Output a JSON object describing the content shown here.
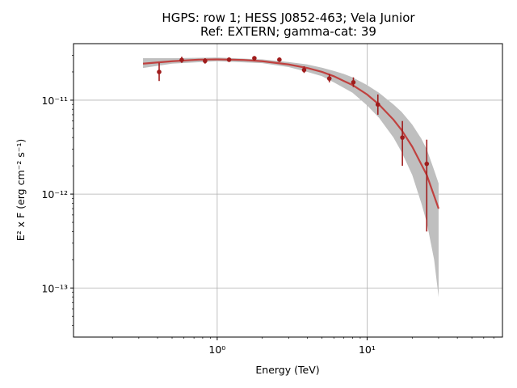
{
  "chart_data": {
    "type": "scatter",
    "title": "HGPS: row 1; HESS J0852-463; Vela Junior",
    "subtitle": "Ref: EXTERN; gamma-cat: 39",
    "xlabel": "Energy (TeV)",
    "ylabel": "E² x F (erg cm⁻² s⁻¹)",
    "x_scale": "log",
    "y_scale": "log",
    "xlim": [
      0.11,
      80
    ],
    "ylim": [
      3e-14,
      4e-11
    ],
    "grid": true,
    "x_ticks": [
      {
        "value": 1,
        "label": "10⁰"
      },
      {
        "value": 10,
        "label": "10¹"
      }
    ],
    "y_ticks": [
      {
        "value": 1e-13,
        "label": "10⁻¹³"
      },
      {
        "value": 1e-12,
        "label": "10⁻¹²"
      },
      {
        "value": 1e-11,
        "label": "10⁻¹¹"
      }
    ],
    "colors": {
      "points": "#a01c1c",
      "model": "#c0413f",
      "band": "#bfbfbf"
    },
    "points": [
      {
        "x": 0.41,
        "y": 2e-11,
        "ylo": 1.6e-11,
        "yhi": 2.5e-11
      },
      {
        "x": 0.58,
        "y": 2.68e-11,
        "ylo": 2.5e-11,
        "yhi": 2.9e-11
      },
      {
        "x": 0.83,
        "y": 2.62e-11,
        "ylo": 2.45e-11,
        "yhi": 2.8e-11
      },
      {
        "x": 1.2,
        "y": 2.7e-11,
        "ylo": 2.55e-11,
        "yhi": 2.85e-11
      },
      {
        "x": 1.77,
        "y": 2.8e-11,
        "ylo": 2.65e-11,
        "yhi": 2.95e-11
      },
      {
        "x": 2.6,
        "y": 2.7e-11,
        "ylo": 2.55e-11,
        "yhi": 2.85e-11
      },
      {
        "x": 3.8,
        "y": 2.1e-11,
        "ylo": 1.95e-11,
        "yhi": 2.3e-11
      },
      {
        "x": 5.6,
        "y": 1.7e-11,
        "ylo": 1.55e-11,
        "yhi": 1.9e-11
      },
      {
        "x": 8.1,
        "y": 1.55e-11,
        "ylo": 1.38e-11,
        "yhi": 1.75e-11
      },
      {
        "x": 11.8,
        "y": 9e-12,
        "ylo": 7e-12,
        "yhi": 1.15e-11
      },
      {
        "x": 17.2,
        "y": 4e-12,
        "ylo": 2e-12,
        "yhi": 6e-12
      },
      {
        "x": 25.0,
        "y": 2.1e-12,
        "ylo": 4e-13,
        "yhi": 3.8e-12
      }
    ],
    "model_curve": [
      {
        "x": 0.32,
        "y": 2.45e-11
      },
      {
        "x": 0.5,
        "y": 2.6e-11
      },
      {
        "x": 0.75,
        "y": 2.7e-11
      },
      {
        "x": 1.0,
        "y": 2.72e-11
      },
      {
        "x": 1.5,
        "y": 2.68e-11
      },
      {
        "x": 2.0,
        "y": 2.6e-11
      },
      {
        "x": 3.0,
        "y": 2.4e-11
      },
      {
        "x": 4.0,
        "y": 2.2e-11
      },
      {
        "x": 5.0,
        "y": 2e-11
      },
      {
        "x": 6.0,
        "y": 1.8e-11
      },
      {
        "x": 7.0,
        "y": 1.6e-11
      },
      {
        "x": 8.0,
        "y": 1.45e-11
      },
      {
        "x": 10.0,
        "y": 1.15e-11
      },
      {
        "x": 12.0,
        "y": 9e-12
      },
      {
        "x": 15.0,
        "y": 6.2e-12
      },
      {
        "x": 17.0,
        "y": 4.8e-12
      },
      {
        "x": 20.0,
        "y": 3.2e-12
      },
      {
        "x": 25.0,
        "y": 1.6e-12
      },
      {
        "x": 30.0,
        "y": 7e-13
      }
    ],
    "model_band": [
      {
        "x": 0.32,
        "lo": 2.2e-11,
        "hi": 2.8e-11
      },
      {
        "x": 0.5,
        "lo": 2.45e-11,
        "hi": 2.8e-11
      },
      {
        "x": 1.0,
        "lo": 2.6e-11,
        "hi": 2.85e-11
      },
      {
        "x": 2.0,
        "lo": 2.48e-11,
        "hi": 2.72e-11
      },
      {
        "x": 3.0,
        "lo": 2.25e-11,
        "hi": 2.55e-11
      },
      {
        "x": 4.0,
        "lo": 2e-11,
        "hi": 2.4e-11
      },
      {
        "x": 5.0,
        "lo": 1.8e-11,
        "hi": 2.22e-11
      },
      {
        "x": 6.0,
        "lo": 1.55e-11,
        "hi": 2.05e-11
      },
      {
        "x": 7.0,
        "lo": 1.35e-11,
        "hi": 1.9e-11
      },
      {
        "x": 8.0,
        "lo": 1.2e-11,
        "hi": 1.75e-11
      },
      {
        "x": 10.0,
        "lo": 8.8e-12,
        "hi": 1.45e-11
      },
      {
        "x": 12.0,
        "lo": 6.5e-12,
        "hi": 1.2e-11
      },
      {
        "x": 15.0,
        "lo": 4e-12,
        "hi": 9e-12
      },
      {
        "x": 17.0,
        "lo": 2.8e-12,
        "hi": 7.5e-12
      },
      {
        "x": 20.0,
        "lo": 1.6e-12,
        "hi": 5.5e-12
      },
      {
        "x": 23.0,
        "lo": 8e-13,
        "hi": 3.9e-12
      },
      {
        "x": 25.0,
        "lo": 5e-13,
        "hi": 3e-12
      },
      {
        "x": 28.0,
        "lo": 2e-13,
        "hi": 1.8e-12
      },
      {
        "x": 30.0,
        "lo": 8e-14,
        "hi": 1.3e-12
      }
    ]
  }
}
